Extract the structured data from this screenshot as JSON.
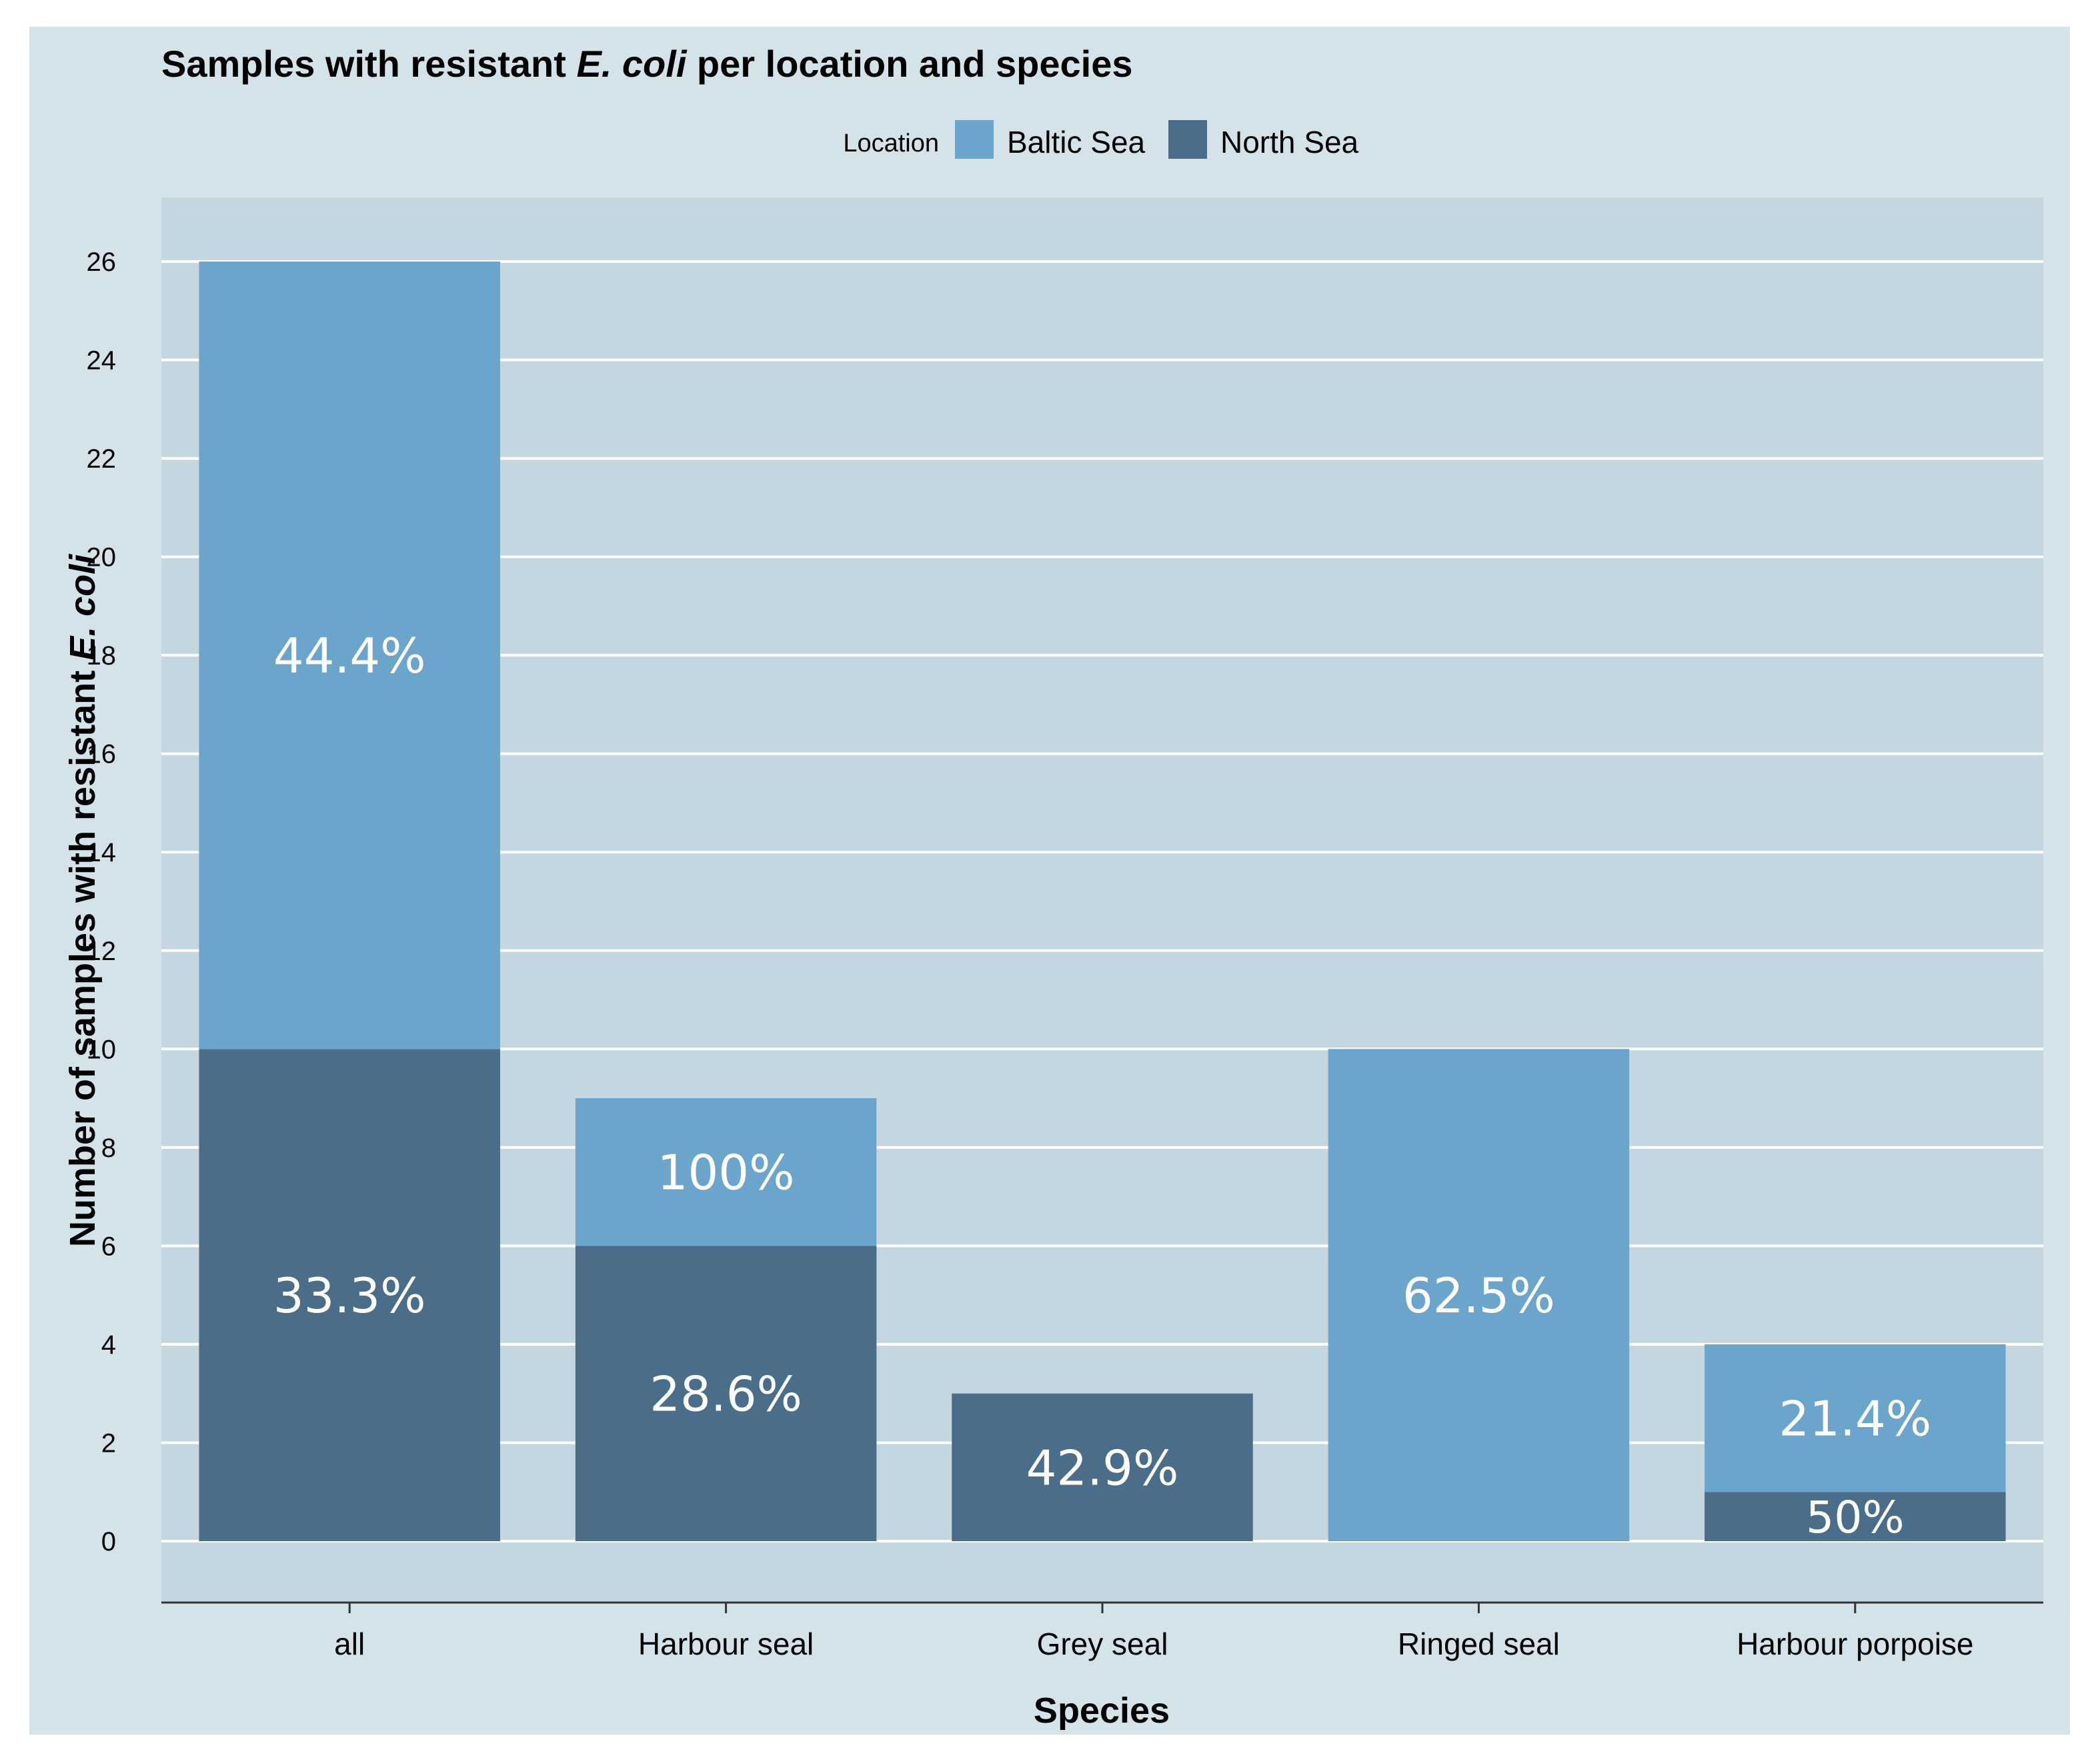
{
  "chart_data": {
    "type": "bar",
    "stacked": true,
    "title_parts": [
      "Samples with resistant ",
      "E. coli",
      " per location and species"
    ],
    "xlabel": "Species",
    "ylabel_parts": [
      "Number of samples with resistant ",
      "E. coli"
    ],
    "legend_title": "Location",
    "categories": [
      "all",
      "Harbour seal",
      "Grey seal",
      "Ringed seal",
      "Harbour porpoise"
    ],
    "series": [
      {
        "name": "North Sea",
        "color": "#4a6e8a",
        "values": [
          10,
          6,
          3,
          0,
          1
        ],
        "labels": [
          "33.3%",
          "28.6%",
          "42.9%",
          "",
          "50%"
        ]
      },
      {
        "name": "Baltic Sea",
        "color": "#6ca5cc",
        "values": [
          16,
          3,
          0,
          10,
          3
        ],
        "labels": [
          "44.4%",
          "100%",
          "",
          "62.5%",
          "21.4%"
        ]
      }
    ],
    "legend_order": [
      "Baltic Sea",
      "North Sea"
    ],
    "ylim": [
      -1,
      27
    ],
    "yticks": [
      0,
      2,
      4,
      6,
      8,
      10,
      12,
      14,
      16,
      18,
      20,
      22,
      24,
      26
    ],
    "grid": true,
    "legend_position": "top-center"
  },
  "colors": {
    "card_bg": "#d4e3ea",
    "panel_bg": "#c4d7e1",
    "grid": "#ffffff",
    "axis": "#333333",
    "text": "#000000",
    "label_text": "#ffffff"
  }
}
